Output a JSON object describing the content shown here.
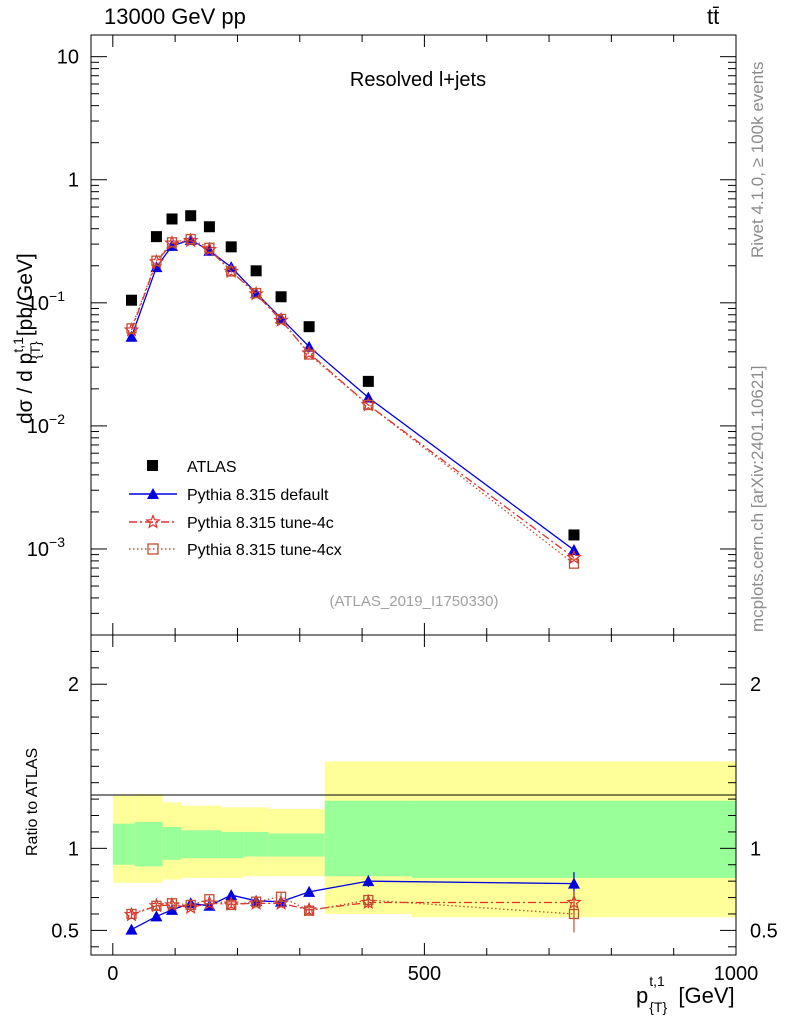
{
  "header": {
    "left": "13000 GeV pp",
    "right": "tt̄"
  },
  "side_labels": {
    "top": "Rivet 4.1.0, ≥ 100k events",
    "bottom": "mcplots.cern.ch [arXiv:2401.10621]"
  },
  "colors": {
    "atlas": "#000000",
    "default": "#0000e0",
    "tune4c": "#e03030",
    "tune4cx": "#c05030",
    "band_inner": "#99ff99",
    "band_outer": "#ffff99"
  },
  "chart_data": [
    {
      "type": "scatter",
      "title": "Resolved l+jets",
      "analysis": "(ATLAS_2019_I1750330)",
      "xlabel": "p_{T}^{t,1} [GeV]",
      "xlabel_base": "p",
      "xlabel_sup": "t,1",
      "xlabel_sub": "{T}",
      "xlabel_unit": "[GeV]",
      "ylabel": "dσ / d p_{T}^{t,1} [pb/GeV]",
      "ylabel_pre": "dσ / d p",
      "ylabel_sup": "t,1",
      "ylabel_sub": "{T}",
      "ylabel_unit": "[pb/GeV]",
      "yscale": "log",
      "xlim": [
        -35,
        1000
      ],
      "ylim": [
        0.0002,
        15
      ],
      "x_ticks": [
        0,
        500,
        1000
      ],
      "y_ticks": [
        {
          "value": 10,
          "label": "10"
        },
        {
          "value": 1,
          "label": "1"
        },
        {
          "value": 0.1,
          "label": "10",
          "exp": "−1"
        },
        {
          "value": 0.01,
          "label": "10",
          "exp": "−2"
        },
        {
          "value": 0.001,
          "label": "10",
          "exp": "−3"
        }
      ],
      "x": [
        30,
        70,
        95,
        125,
        155,
        190,
        230,
        270,
        315,
        410,
        740
      ],
      "series": [
        {
          "name": "ATLAS",
          "marker": "square",
          "values": [
            0.105,
            0.345,
            0.48,
            0.51,
            0.415,
            0.285,
            0.182,
            0.112,
            0.064,
            0.023,
            0.0013
          ]
        },
        {
          "name": "Pythia 8.315 default",
          "marker": "triangle",
          "line": "solid",
          "values": [
            0.053,
            0.195,
            0.29,
            0.325,
            0.265,
            0.195,
            0.12,
            0.075,
            0.044,
            0.017,
            0.00098
          ]
        },
        {
          "name": "Pythia 8.315 tune-4c",
          "marker": "star",
          "line": "dashdot",
          "values": [
            0.06,
            0.215,
            0.305,
            0.32,
            0.27,
            0.18,
            0.118,
            0.072,
            0.039,
            0.0148,
            0.00085
          ]
        },
        {
          "name": "Pythia 8.315 tune-4cx",
          "marker": "open-square",
          "line": "dotted",
          "values": [
            0.062,
            0.22,
            0.31,
            0.33,
            0.28,
            0.18,
            0.12,
            0.074,
            0.038,
            0.0148,
            0.00076
          ]
        }
      ]
    },
    {
      "type": "scatter",
      "ylabel": "Ratio to ATLAS",
      "xlim": [
        -35,
        1000
      ],
      "ylim": [
        0.35,
        2.3
      ],
      "y_ticks": [
        0.5,
        1,
        2
      ],
      "x": [
        30,
        70,
        95,
        125,
        155,
        190,
        230,
        270,
        315,
        410,
        740
      ],
      "band_edges": [
        0,
        35,
        80,
        110,
        140,
        175,
        210,
        250,
        290,
        340,
        480,
        1000
      ],
      "band_inner": [
        [
          0.9,
          1.15
        ],
        [
          0.89,
          1.16
        ],
        [
          0.93,
          1.13
        ],
        [
          0.94,
          1.11
        ],
        [
          0.94,
          1.11
        ],
        [
          0.94,
          1.1
        ],
        [
          0.95,
          1.1
        ],
        [
          0.95,
          1.09
        ],
        [
          0.95,
          1.09
        ],
        [
          0.83,
          1.29
        ],
        [
          0.82,
          1.29
        ]
      ],
      "band_outer": [
        [
          0.79,
          1.32
        ],
        [
          0.79,
          1.33
        ],
        [
          0.81,
          1.28
        ],
        [
          0.82,
          1.26
        ],
        [
          0.82,
          1.26
        ],
        [
          0.82,
          1.25
        ],
        [
          0.83,
          1.25
        ],
        [
          0.83,
          1.24
        ],
        [
          0.83,
          1.24
        ],
        [
          0.6,
          1.53
        ],
        [
          0.58,
          1.53
        ]
      ],
      "series": [
        {
          "name": "Pythia 8.315 default",
          "values": [
            0.505,
            0.585,
            0.625,
            0.665,
            0.65,
            0.715,
            0.68,
            0.675,
            0.735,
            0.8,
            0.785
          ]
        },
        {
          "name": "Pythia 8.315 tune-4c",
          "values": [
            0.595,
            0.65,
            0.655,
            0.64,
            0.665,
            0.66,
            0.665,
            0.665,
            0.625,
            0.67,
            0.67
          ]
        },
        {
          "name": "Pythia 8.315 tune-4cx",
          "values": [
            0.6,
            0.65,
            0.665,
            0.655,
            0.69,
            0.655,
            0.675,
            0.705,
            0.62,
            0.685,
            0.6
          ]
        }
      ]
    }
  ]
}
